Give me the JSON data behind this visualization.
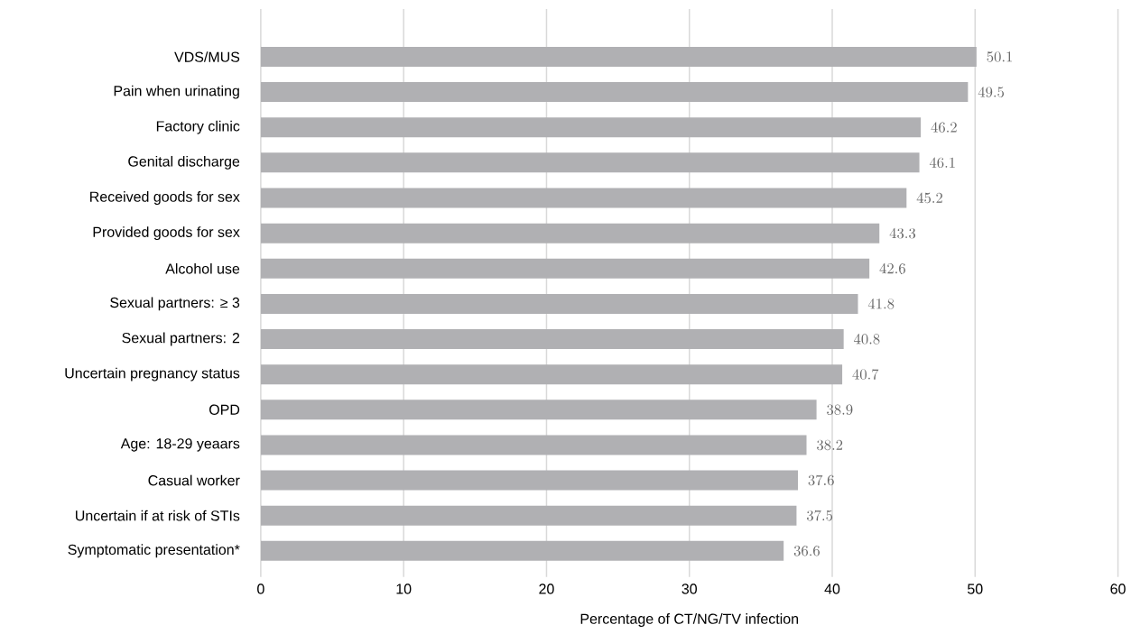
{
  "chart_data": {
    "type": "bar",
    "orientation": "horizontal",
    "xlabel": "Percentage of CT/NG/TV infection",
    "categories": [
      "VDS/MUS",
      "Pain when urinating",
      "Factory clinic",
      "Genital discharge",
      "Received goods for sex",
      "Provided goods for sex",
      "Alcohol use",
      "Sexual partners: ≥ 3",
      "Sexual partners: 2",
      "Uncertain pregnancy status",
      "OPD",
      "Age: 18-29 yeaars",
      "Casual worker",
      "Uncertain if at risk of STIs",
      "Symptomatic presentation*"
    ],
    "values": [
      50.1,
      49.5,
      46.2,
      46.1,
      45.2,
      43.3,
      42.6,
      41.8,
      40.8,
      40.7,
      38.9,
      38.2,
      37.6,
      37.5,
      36.6
    ],
    "color": "#b0b0b3",
    "xlim": [
      0,
      60
    ],
    "xticks": [
      0,
      10,
      20,
      30,
      40,
      50,
      60
    ],
    "grid": "x",
    "data_labels": true
  }
}
